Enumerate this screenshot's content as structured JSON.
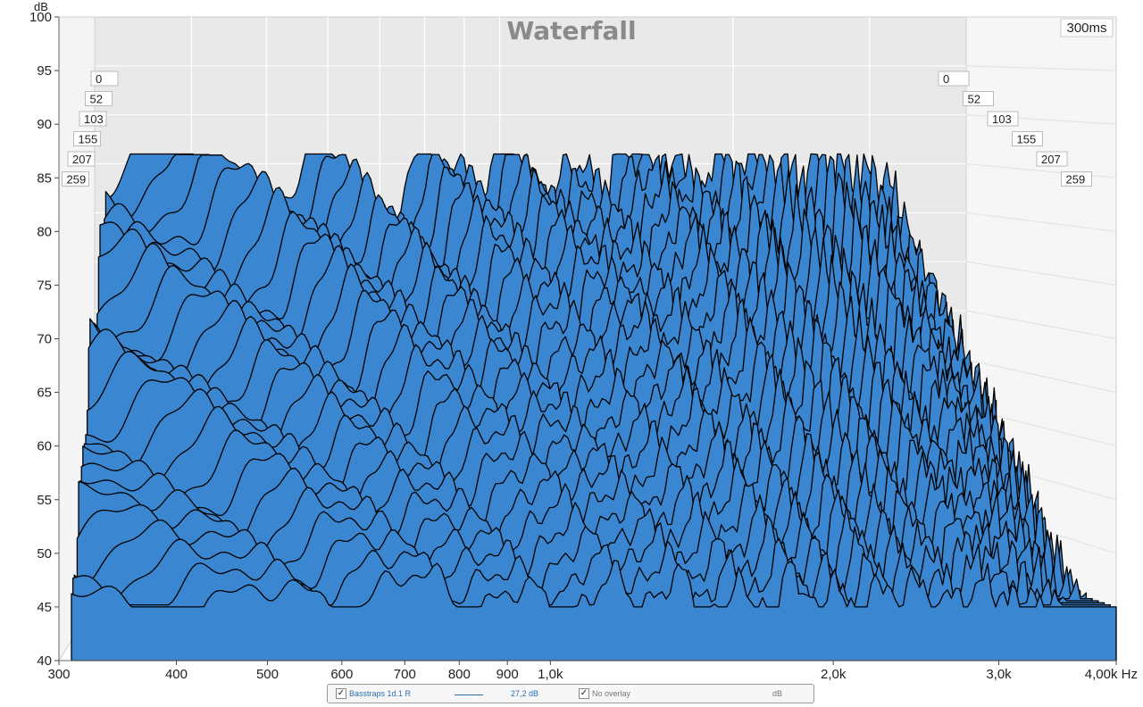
{
  "chart_data": {
    "type": "waterfall",
    "title": "Waterfall",
    "ylabel": "dB",
    "xlabel": "Hz",
    "y_ticks": [
      "100",
      "95",
      "90",
      "85",
      "80",
      "75",
      "70",
      "65",
      "60",
      "55",
      "50",
      "45",
      "40"
    ],
    "x_ticks": [
      "300",
      "400",
      "500",
      "600",
      "700",
      "800",
      "900",
      "1,0k",
      "2,0k",
      "3,0k",
      "4,00k Hz"
    ],
    "ylim": [
      40,
      100
    ],
    "xlim": [
      300,
      4000
    ],
    "x_scale": "log",
    "time_axis_label": "300ms",
    "time_slices_ms": [
      "0",
      "52",
      "103",
      "155",
      "207",
      "259"
    ],
    "fill_color": "#3a86d0",
    "line_color": "#000000",
    "plane_color": "#e9e9e9",
    "grid": true,
    "description_values": {
      "front_peak_level_db": 86,
      "floor_level_db": 45,
      "rolloff_start_hz": 3000
    }
  },
  "legend": {
    "series_name": "Basstraps 1d.1 R",
    "smoothing_value": "27,2 dB",
    "overlay_label": "No overlay",
    "unit": "dB",
    "checkmark": "✓"
  }
}
